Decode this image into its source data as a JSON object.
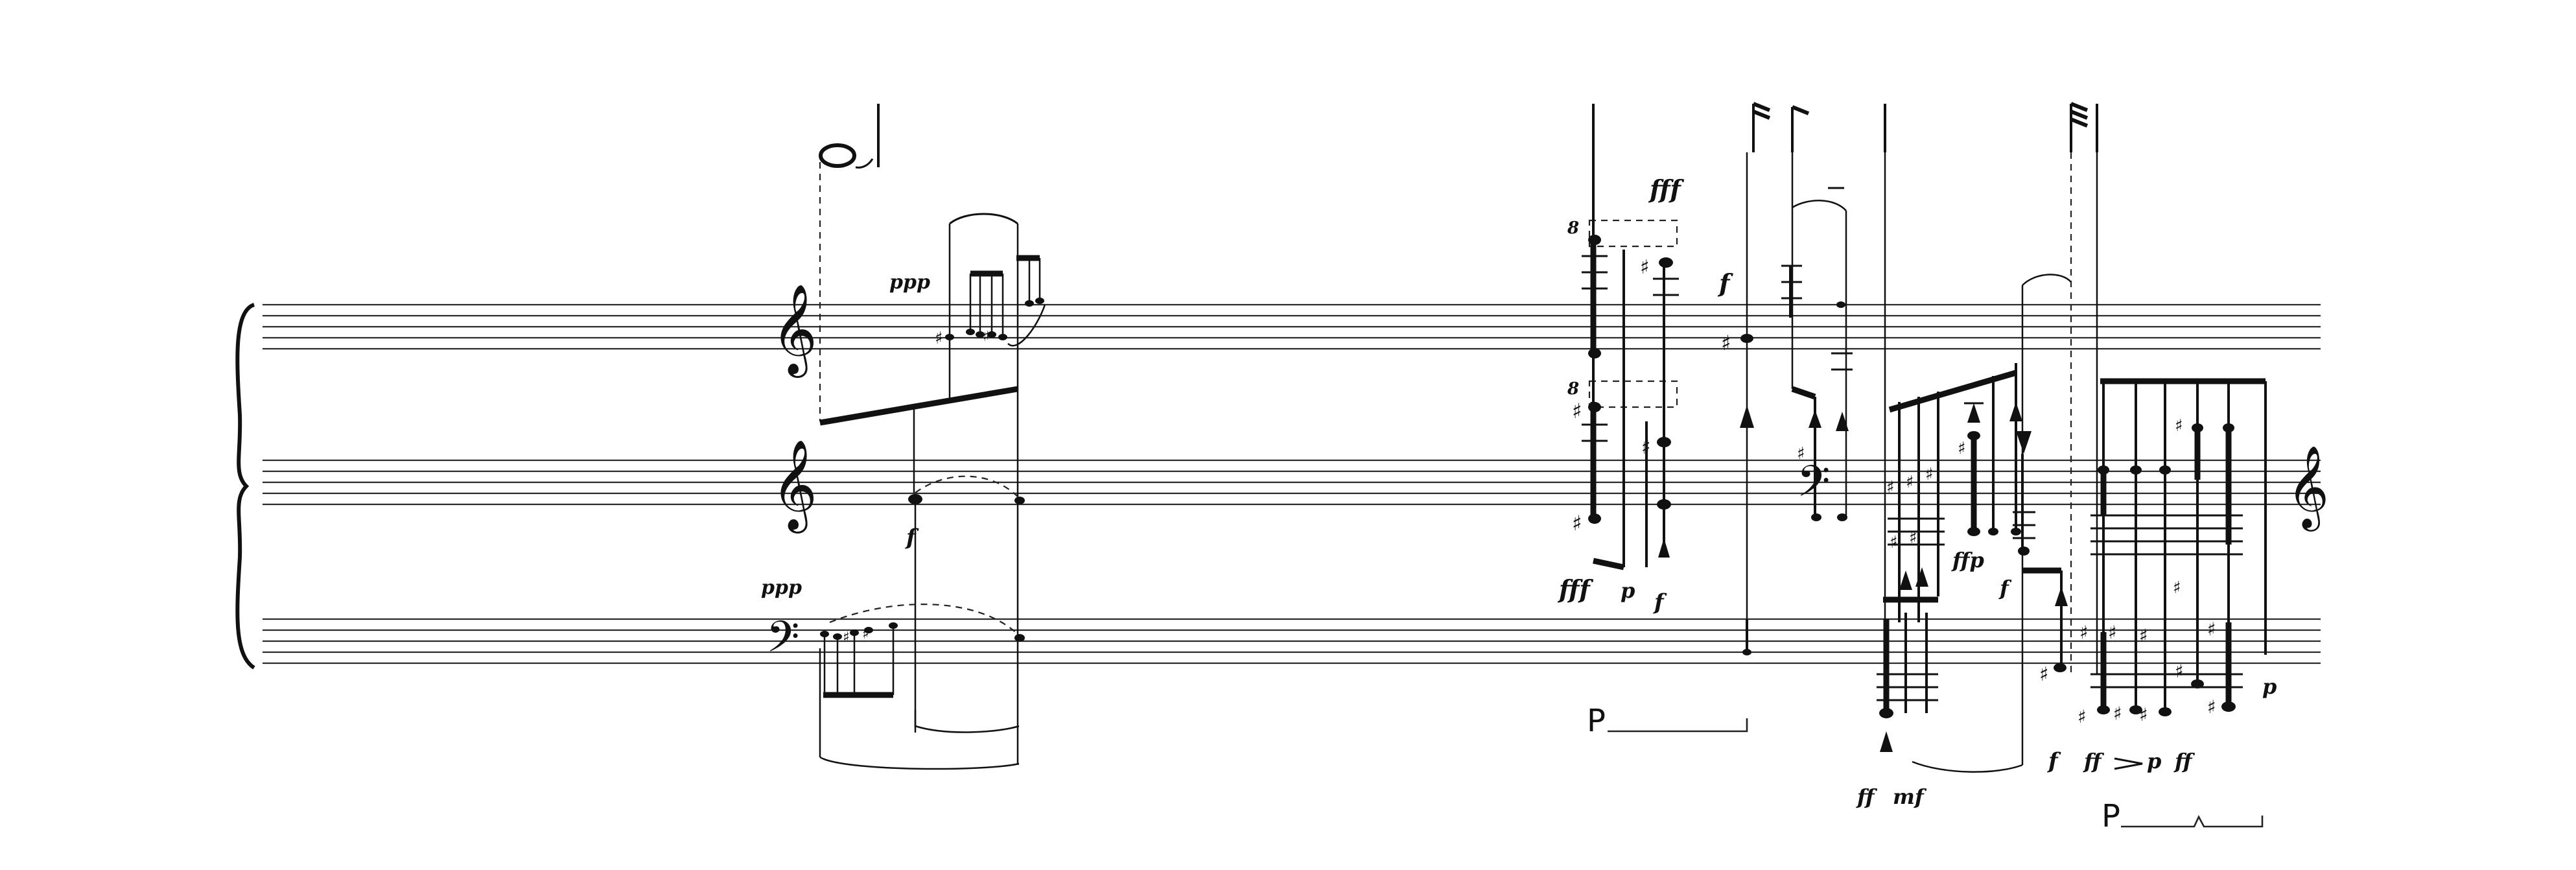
{
  "score": {
    "clefs": {
      "treble": "𝄞",
      "bass": "𝄢"
    },
    "dynamics": {
      "ppp_upper": "ppp",
      "ppp_lower": "ppp",
      "f_middle": "f",
      "fff_top": "fff",
      "f_right": "f",
      "fff_bottom": "fff",
      "p_bottom": "p",
      "f_bottom": "f",
      "ffp": "ffp",
      "f_center": "f",
      "ff_low": "ff",
      "mf_low": "mf",
      "f_end": "f",
      "ff_to_p": "ff",
      "p_to": "p",
      "ff_end": "ff",
      "p_end": "p"
    },
    "ottava_marks": [
      "8",
      "8"
    ],
    "pedal_marks": [
      "P",
      "P"
    ],
    "accidental_symbol": "♯"
  }
}
